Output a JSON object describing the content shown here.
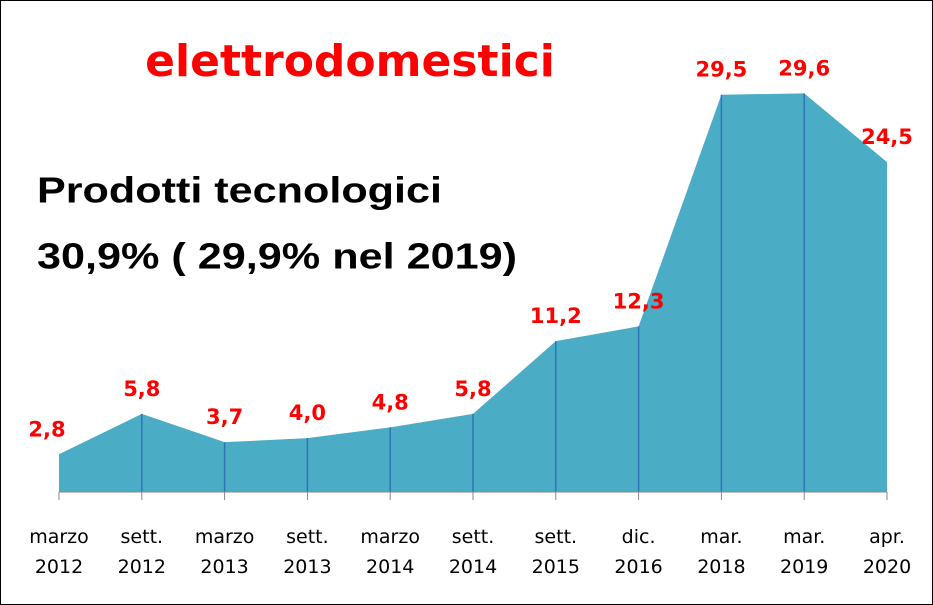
{
  "chart_data": {
    "type": "area",
    "title": "elettrodomestici",
    "annotations": [
      "Prodotti tecnologici",
      "30,9% ( 29,9% nel 2019)"
    ],
    "categories": [
      [
        "marzo",
        "2012"
      ],
      [
        "sett.",
        "2012"
      ],
      [
        "marzo",
        "2013"
      ],
      [
        "sett.",
        "2013"
      ],
      [
        "marzo",
        "2014"
      ],
      [
        "sett.",
        "2014"
      ],
      [
        "sett.",
        "2015"
      ],
      [
        "dic.",
        "2016"
      ],
      [
        "mar.",
        "2018"
      ],
      [
        "mar.",
        "2019"
      ],
      [
        "apr.",
        "2020"
      ]
    ],
    "values": [
      2.8,
      5.8,
      3.7,
      4.0,
      4.8,
      5.8,
      11.2,
      12.3,
      29.5,
      29.6,
      24.5
    ],
    "value_labels": [
      "2,8",
      "5,8",
      "3,7",
      "4,0",
      "4,8",
      "5,8",
      "11,2",
      "12,3",
      "29,5",
      "29,6",
      "24,5"
    ],
    "color": "#4bacc6",
    "line_color": "#2e75b6",
    "label_color": "#ff0000",
    "ylim": [
      0,
      30
    ]
  }
}
